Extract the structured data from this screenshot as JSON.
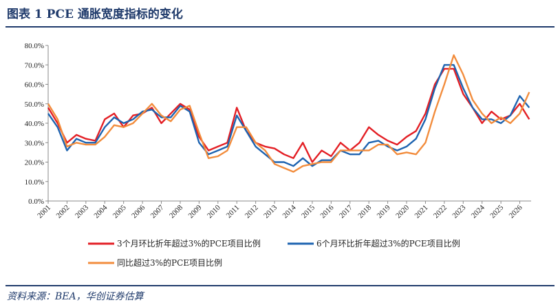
{
  "title": "图表 1   PCE 通胀宽度指标的变化",
  "source": "资料来源：BEA，华创证券估算",
  "colors": {
    "title_blue": "#1f3a6b",
    "series_red": "#e31e24",
    "series_blue": "#1d63b0",
    "series_orange": "#f28c3c",
    "axis": "#888888"
  },
  "chart_data": {
    "type": "line",
    "title": "",
    "xlabel": "",
    "ylabel": "",
    "ylim": [
      0,
      80
    ],
    "yticks": [
      "0.0%",
      "10.0%",
      "20.0%",
      "30.0%",
      "40.0%",
      "50.0%",
      "60.0%",
      "70.0%",
      "80.0%"
    ],
    "xticks": [
      "2001",
      "2002",
      "2003",
      "2004",
      "2005",
      "2006",
      "2007",
      "2008",
      "2009",
      "2010",
      "2011",
      "2012",
      "2013",
      "2014",
      "2015",
      "2016",
      "2017",
      "2018",
      "2019",
      "2020",
      "2021",
      "2022",
      "2023",
      "2024",
      "2025",
      "2026"
    ],
    "x_range": [
      2001.0,
      2026.6
    ],
    "grid": false,
    "legend_position": "bottom",
    "series": [
      {
        "name": "3个月环比折年超过3%的PCE项目比例",
        "color": "#e31e24",
        "x": [
          2001.0,
          2001.5,
          2002.0,
          2002.5,
          2003.0,
          2003.5,
          2004.0,
          2004.5,
          2005.0,
          2005.5,
          2006.0,
          2006.5,
          2007.0,
          2007.5,
          2008.0,
          2008.5,
          2009.0,
          2009.5,
          2010.0,
          2010.5,
          2011.0,
          2011.5,
          2012.0,
          2012.5,
          2013.0,
          2013.5,
          2014.0,
          2014.5,
          2015.0,
          2015.5,
          2016.0,
          2016.5,
          2017.0,
          2017.5,
          2018.0,
          2018.5,
          2019.0,
          2019.5,
          2020.0,
          2020.5,
          2021.0,
          2021.5,
          2022.0,
          2022.5,
          2023.0,
          2023.5,
          2024.0,
          2024.5,
          2025.0,
          2025.5,
          2026.0,
          2026.5
        ],
        "values": [
          48,
          40,
          30,
          34,
          32,
          31,
          42,
          45,
          38,
          44,
          45,
          48,
          40,
          45,
          50,
          47,
          33,
          26,
          28,
          30,
          48,
          36,
          30,
          28,
          27,
          24,
          22,
          30,
          20,
          26,
          23,
          30,
          26,
          30,
          38,
          34,
          31,
          29,
          33,
          36,
          45,
          60,
          68,
          68,
          55,
          48,
          40,
          46,
          42,
          44,
          50,
          42
        ]
      },
      {
        "name": "6个月环比折年超过3%的PCE项目比例",
        "color": "#1d63b0",
        "x": [
          2001.0,
          2001.5,
          2002.0,
          2002.5,
          2003.0,
          2003.5,
          2004.0,
          2004.5,
          2005.0,
          2005.5,
          2006.0,
          2006.5,
          2007.0,
          2007.5,
          2008.0,
          2008.5,
          2009.0,
          2009.5,
          2010.0,
          2010.5,
          2011.0,
          2011.5,
          2012.0,
          2012.5,
          2013.0,
          2013.5,
          2014.0,
          2014.5,
          2015.0,
          2015.5,
          2016.0,
          2016.5,
          2017.0,
          2017.5,
          2018.0,
          2018.5,
          2019.0,
          2019.5,
          2020.0,
          2020.5,
          2021.0,
          2021.5,
          2022.0,
          2022.5,
          2023.0,
          2023.5,
          2024.0,
          2024.5,
          2025.0,
          2025.5,
          2026.0,
          2026.5
        ],
        "values": [
          45,
          38,
          26,
          32,
          30,
          30,
          38,
          43,
          40,
          42,
          46,
          47,
          43,
          43,
          49,
          46,
          30,
          24,
          26,
          28,
          44,
          36,
          28,
          24,
          20,
          20,
          18,
          22,
          18,
          21,
          21,
          26,
          24,
          24,
          30,
          31,
          28,
          26,
          28,
          32,
          42,
          58,
          70,
          70,
          58,
          48,
          42,
          42,
          40,
          44,
          54,
          48
        ]
      },
      {
        "name": "同比超过3%的PCE项目比例",
        "color": "#f28c3c",
        "x": [
          2001.0,
          2001.5,
          2002.0,
          2002.5,
          2003.0,
          2003.5,
          2004.0,
          2004.5,
          2005.0,
          2005.5,
          2006.0,
          2006.5,
          2007.0,
          2007.5,
          2008.0,
          2008.5,
          2009.0,
          2009.5,
          2010.0,
          2010.5,
          2011.0,
          2011.5,
          2012.0,
          2012.5,
          2013.0,
          2013.5,
          2014.0,
          2014.5,
          2015.0,
          2015.5,
          2016.0,
          2016.5,
          2017.0,
          2017.5,
          2018.0,
          2018.5,
          2019.0,
          2019.5,
          2020.0,
          2020.5,
          2021.0,
          2021.5,
          2022.0,
          2022.5,
          2023.0,
          2023.5,
          2024.0,
          2024.5,
          2025.0,
          2025.5,
          2026.0,
          2026.5
        ],
        "values": [
          50,
          42,
          28,
          30,
          29,
          29,
          33,
          39,
          38,
          40,
          45,
          50,
          44,
          41,
          47,
          49,
          35,
          22,
          23,
          26,
          38,
          38,
          30,
          26,
          19,
          17,
          15,
          18,
          19,
          20,
          20,
          26,
          26,
          26,
          26,
          29,
          29,
          24,
          25,
          24,
          30,
          46,
          60,
          75,
          65,
          52,
          45,
          40,
          43,
          40,
          45,
          56
        ]
      }
    ]
  }
}
